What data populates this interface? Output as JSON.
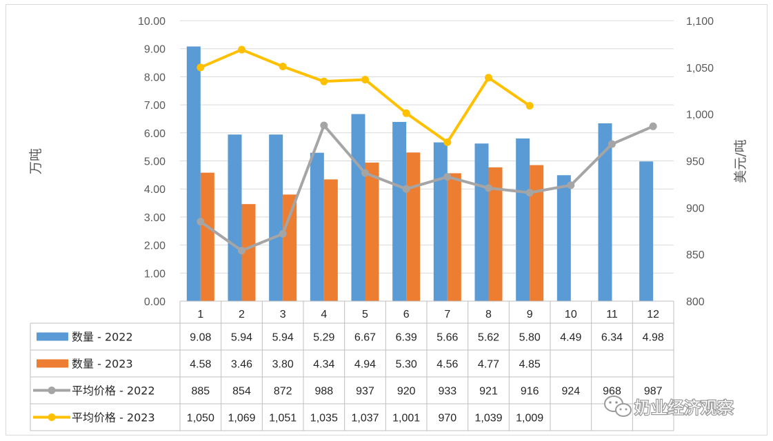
{
  "chart_data": {
    "type": "bar+line",
    "categories": [
      "1",
      "2",
      "3",
      "4",
      "5",
      "6",
      "7",
      "8",
      "9",
      "10",
      "11",
      "12"
    ],
    "y_left": {
      "label": "万吨",
      "min": 0,
      "max": 10,
      "step": 1,
      "ticks": [
        "0.00",
        "1.00",
        "2.00",
        "3.00",
        "4.00",
        "5.00",
        "6.00",
        "7.00",
        "8.00",
        "9.00",
        "10.00"
      ]
    },
    "y_right": {
      "label": "美元/吨",
      "min": 800,
      "max": 1100,
      "step": 50,
      "ticks": [
        "800",
        "850",
        "900",
        "950",
        "1,000",
        "1,050",
        "1,100"
      ]
    },
    "bar_series": [
      {
        "name": "数量 - 2022",
        "color": "#5b9bd5",
        "values": [
          9.08,
          5.94,
          5.94,
          5.29,
          6.67,
          6.39,
          5.66,
          5.62,
          5.8,
          4.49,
          6.34,
          4.98
        ],
        "labels": [
          "9.08",
          "5.94",
          "5.94",
          "5.29",
          "6.67",
          "6.39",
          "5.66",
          "5.62",
          "5.80",
          "4.49",
          "6.34",
          "4.98"
        ]
      },
      {
        "name": "数量 - 2023",
        "color": "#ed7d31",
        "values": [
          4.58,
          3.46,
          3.8,
          4.34,
          4.94,
          5.3,
          4.56,
          4.77,
          4.85,
          null,
          null,
          null
        ],
        "labels": [
          "4.58",
          "3.46",
          "3.80",
          "4.34",
          "4.94",
          "5.30",
          "4.56",
          "4.77",
          "4.85",
          "",
          "",
          ""
        ]
      }
    ],
    "line_series": [
      {
        "name": "平均价格 - 2022",
        "color": "#a5a5a5",
        "values": [
          885,
          854,
          872,
          988,
          937,
          920,
          933,
          921,
          916,
          924,
          968,
          987
        ],
        "labels": [
          "885",
          "854",
          "872",
          "988",
          "937",
          "920",
          "933",
          "921",
          "916",
          "924",
          "968",
          "987"
        ]
      },
      {
        "name": "平均价格 - 2023",
        "color": "#ffc000",
        "values": [
          1050,
          1069,
          1051,
          1035,
          1037,
          1001,
          970,
          1039,
          1009,
          null,
          null,
          null
        ],
        "labels": [
          "1,050",
          "1,069",
          "1,051",
          "1,035",
          "1,037",
          "1,001",
          "970",
          "1,039",
          "1,009",
          "",
          "",
          ""
        ]
      }
    ],
    "grid": true,
    "legend": "data-table-left"
  },
  "watermark": {
    "text": "奶业经济观察",
    "icon": "wechat-icon"
  }
}
